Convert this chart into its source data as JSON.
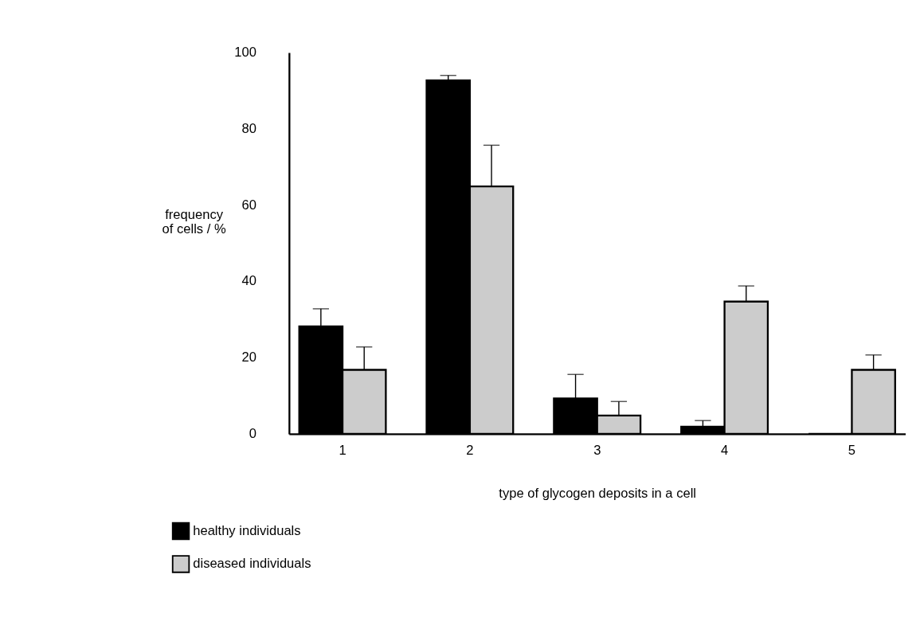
{
  "chart_data": {
    "type": "bar",
    "xlabel": "type of glycogen deposits in a cell",
    "ylabel": "frequency of cells / %",
    "categories": [
      "1",
      "2",
      "3",
      "4",
      "5"
    ],
    "series": [
      {
        "name": "healthy individuals",
        "color": "#000000",
        "values": [
          28.2,
          92.7,
          9.3,
          1.9,
          0
        ],
        "errors": [
          [
            28.2,
            32.8
          ],
          [
            92.7,
            94.0
          ],
          [
            9.3,
            15.6
          ],
          [
            1.9,
            3.5
          ],
          null
        ]
      },
      {
        "name": "diseased individuals",
        "color": "#cccccc",
        "values": [
          16.8,
          64.9,
          4.8,
          34.7,
          16.8
        ],
        "errors": [
          [
            16.8,
            22.8
          ],
          [
            64.9,
            75.7
          ],
          [
            4.8,
            8.5
          ],
          [
            34.7,
            38.8
          ],
          [
            16.8,
            20.7
          ]
        ]
      }
    ],
    "ylim": [
      0,
      100
    ],
    "yticks": [
      0,
      20,
      40,
      60,
      80,
      100
    ],
    "grid": false,
    "legend": "bottom left"
  }
}
